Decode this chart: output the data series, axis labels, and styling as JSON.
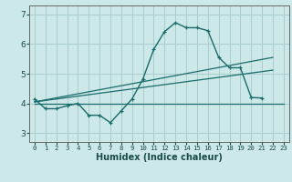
{
  "xlabel": "Humidex (Indice chaleur)",
  "bg_color": "#cce8e8",
  "grid_color": "#aacccc",
  "line_color": "#1a6b6b",
  "xlim": [
    -0.5,
    23.5
  ],
  "ylim": [
    2.7,
    7.3
  ],
  "yticks": [
    3,
    4,
    5,
    6,
    7
  ],
  "xticks": [
    0,
    1,
    2,
    3,
    4,
    5,
    6,
    7,
    8,
    9,
    10,
    11,
    12,
    13,
    14,
    15,
    16,
    17,
    18,
    19,
    20,
    21,
    22,
    23
  ],
  "curve1_x": [
    0,
    1,
    2,
    3,
    4,
    5,
    6,
    7,
    8,
    9,
    10,
    11,
    12,
    13,
    14,
    15,
    16,
    17,
    18,
    19,
    20,
    21
  ],
  "curve1_y": [
    4.15,
    3.82,
    3.82,
    3.92,
    4.0,
    3.6,
    3.6,
    3.35,
    3.75,
    4.15,
    4.82,
    5.82,
    6.42,
    6.72,
    6.55,
    6.55,
    6.45,
    5.55,
    5.2,
    5.2,
    4.2,
    4.18
  ],
  "curve2_x": [
    0,
    23
  ],
  "curve2_y": [
    4.0,
    4.0
  ],
  "curve3_x": [
    0,
    22
  ],
  "curve3_y": [
    4.05,
    5.12
  ],
  "curve4_x": [
    0,
    22
  ],
  "curve4_y": [
    4.05,
    5.55
  ]
}
